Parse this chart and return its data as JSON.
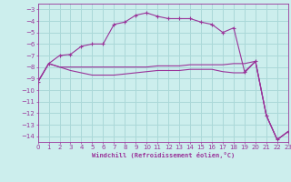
{
  "xlabel": "Windchill (Refroidissement éolien,°C)",
  "bg_color": "#cceeed",
  "grid_color": "#aad8d8",
  "line_color": "#993399",
  "xlim": [
    0,
    23
  ],
  "ylim": [
    -14.5,
    -2.5
  ],
  "yticks": [
    -3,
    -4,
    -5,
    -6,
    -7,
    -8,
    -9,
    -10,
    -11,
    -12,
    -13,
    -14
  ],
  "xticks": [
    0,
    1,
    2,
    3,
    4,
    5,
    6,
    7,
    8,
    9,
    10,
    11,
    12,
    13,
    14,
    15,
    16,
    17,
    18,
    19,
    20,
    21,
    22,
    23
  ],
  "series1_x": [
    0,
    1,
    2,
    3,
    4,
    5,
    6,
    7,
    8,
    9,
    10,
    11,
    12,
    13,
    14,
    15,
    16,
    17,
    18,
    19,
    20,
    21,
    22,
    23
  ],
  "series1_y": [
    -9.3,
    -7.7,
    -7.0,
    -6.9,
    -6.2,
    -6.0,
    -6.0,
    -4.3,
    -4.1,
    -3.5,
    -3.3,
    -3.6,
    -3.8,
    -3.8,
    -3.8,
    -4.1,
    -4.3,
    -5.0,
    -4.6,
    -8.4,
    -7.5,
    -12.2,
    -14.3,
    -13.6
  ],
  "series2_x": [
    0,
    1,
    2,
    3,
    4,
    5,
    6,
    7,
    8,
    9,
    10,
    11,
    12,
    13,
    14,
    15,
    16,
    17,
    18,
    19,
    20,
    21,
    22,
    23
  ],
  "series2_y": [
    -9.3,
    -7.7,
    -8.0,
    -8.0,
    -8.0,
    -8.0,
    -8.0,
    -8.0,
    -8.0,
    -8.0,
    -8.0,
    -7.9,
    -7.9,
    -7.9,
    -7.8,
    -7.8,
    -7.8,
    -7.8,
    -7.7,
    -7.7,
    -7.5,
    -12.2,
    -14.3,
    -13.6
  ],
  "series3_x": [
    0,
    1,
    2,
    3,
    4,
    5,
    6,
    7,
    8,
    9,
    10,
    11,
    12,
    13,
    14,
    15,
    16,
    17,
    18,
    19,
    20,
    21,
    22,
    23
  ],
  "series3_y": [
    -9.3,
    -7.7,
    -8.0,
    -8.3,
    -8.5,
    -8.7,
    -8.7,
    -8.7,
    -8.6,
    -8.5,
    -8.4,
    -8.3,
    -8.3,
    -8.3,
    -8.2,
    -8.2,
    -8.2,
    -8.4,
    -8.5,
    -8.5,
    -7.5,
    -12.2,
    -14.3,
    -13.6
  ]
}
